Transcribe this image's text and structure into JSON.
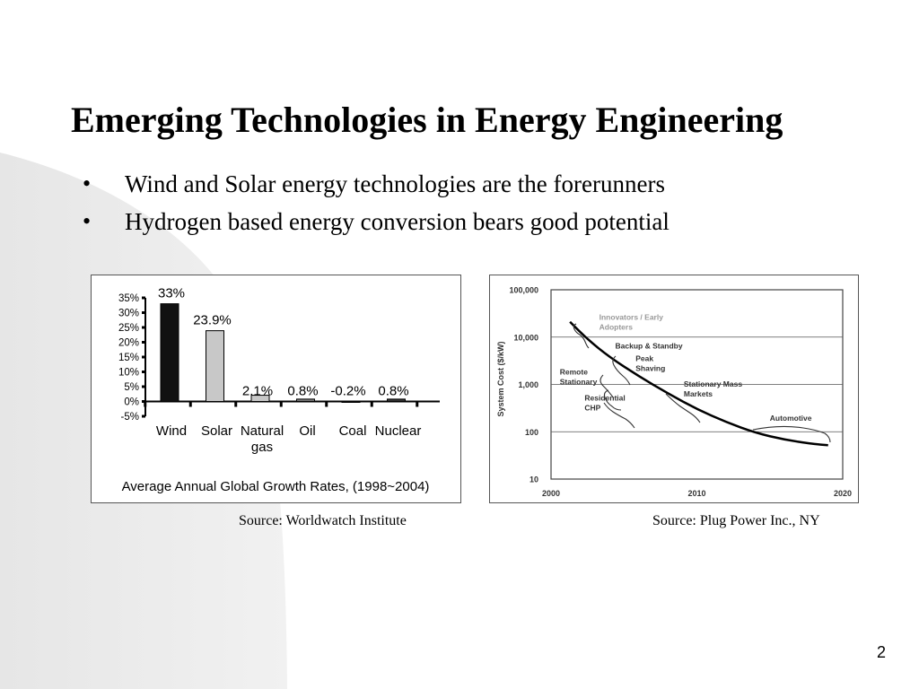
{
  "slide": {
    "title": "Emerging Technologies in Energy Engineering",
    "bullets": [
      "Wind and Solar energy technologies are the forerunners",
      "Hydrogen based energy conversion bears good potential"
    ],
    "bullet_symbol": "•",
    "page_number": "2"
  },
  "sources": {
    "left": "Source: Worldwatch Institute",
    "right": "Source: Plug Power Inc., NY"
  },
  "chart_data": [
    {
      "type": "bar",
      "title": "Average Annual Global Growth Rates, (1998~2004)",
      "categories": [
        "Wind",
        "Solar",
        "Natural gas",
        "Oil",
        "Coal",
        "Nuclear"
      ],
      "category_lines": [
        [
          "Wind"
        ],
        [
          "Solar"
        ],
        [
          "Natural",
          "gas"
        ],
        [
          "Oil"
        ],
        [
          "Coal"
        ],
        [
          "Nuclear"
        ]
      ],
      "values": [
        33,
        23.9,
        2.1,
        0.8,
        -0.2,
        0.8
      ],
      "value_labels": [
        "33%",
        "23.9%",
        "2.1%",
        "0.8%",
        "-0.2%",
        "0.8%"
      ],
      "bar_colors": [
        "#111111",
        "#c8c8c8",
        "#c8c8c8",
        "#777777",
        "#777777",
        "#333333"
      ],
      "ylim": [
        -5,
        35
      ],
      "yticks": [
        35,
        30,
        25,
        20,
        15,
        10,
        5,
        0,
        -5
      ],
      "ytick_labels": [
        "35%",
        "30%",
        "25%",
        "20%",
        "15%",
        "10%",
        "5%",
        "0%",
        "-5%"
      ],
      "xlabel": "",
      "ylabel": ""
    },
    {
      "type": "line",
      "title": "",
      "xlabel": "",
      "ylabel": "System Cost ($/kW)",
      "y_scale": "log",
      "xlim": [
        2000,
        2020
      ],
      "ylim": [
        10,
        100000
      ],
      "xticks": [
        2000,
        2010,
        2020
      ],
      "xtick_labels": [
        "2000",
        "2010",
        "2020"
      ],
      "yticks": [
        100000,
        10000,
        1000,
        100,
        10
      ],
      "ytick_labels": [
        "100,000",
        "10,000",
        "1,000",
        "100",
        "10"
      ],
      "grid": "horizontal",
      "series": [
        {
          "x": [
            2001.3,
            2002.5,
            2004,
            2006,
            2008,
            2010,
            2012,
            2014,
            2016,
            2018,
            2019
          ],
          "y": [
            21000,
            9000,
            3800,
            1500,
            650,
            300,
            160,
            95,
            68,
            55,
            52
          ]
        }
      ],
      "annotations": [
        {
          "text": "Innovators / Early Adopters",
          "lines": [
            "Innovators / Early",
            "Adopters"
          ],
          "x": 2003.3,
          "y": 23000,
          "color": "#999999"
        },
        {
          "text": "Backup & Standby",
          "lines": [
            "Backup & Standby"
          ],
          "x": 2004.4,
          "y": 5700,
          "color": "#333333"
        },
        {
          "text": "Peak Shaving",
          "lines": [
            "Peak",
            "Shaving"
          ],
          "x": 2005.8,
          "y": 3100,
          "color": "#333333"
        },
        {
          "text": "Remote Stationary",
          "lines": [
            "Remote",
            "Stationary"
          ],
          "x": 2000.6,
          "y": 1600,
          "color": "#333333"
        },
        {
          "text": "Stationary Mass Markets",
          "lines": [
            "Stationary Mass",
            "Markets"
          ],
          "x": 2009.1,
          "y": 900,
          "color": "#333333"
        },
        {
          "text": "Residential CHP",
          "lines": [
            "Residential",
            "CHP"
          ],
          "x": 2002.3,
          "y": 460,
          "color": "#333333"
        },
        {
          "text": "Automotive",
          "lines": [
            "Automotive"
          ],
          "x": 2015,
          "y": 170,
          "color": "#333333"
        }
      ]
    }
  ]
}
